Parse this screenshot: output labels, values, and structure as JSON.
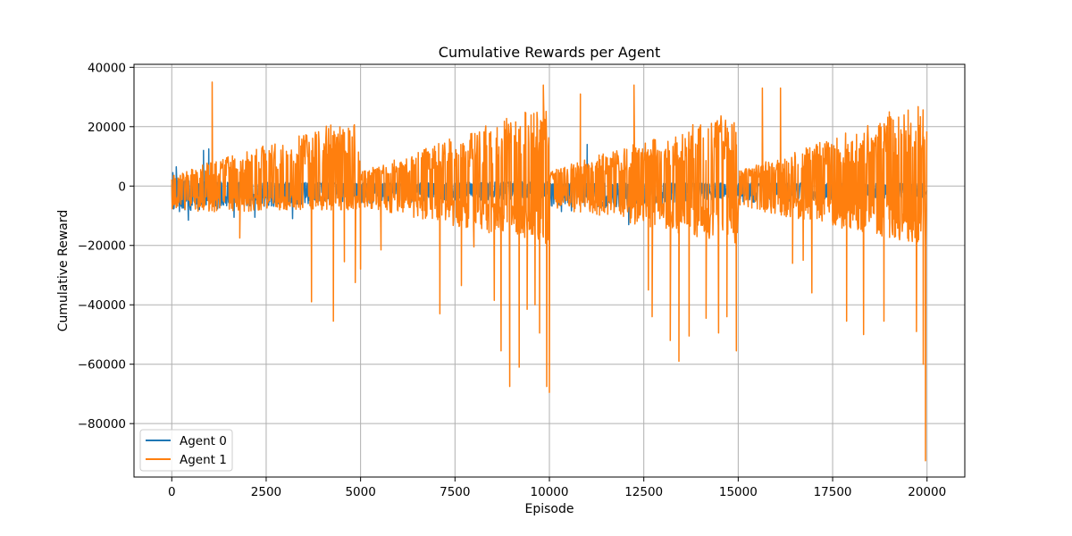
{
  "chart_data": {
    "type": "line",
    "title": "Cumulative Rewards per Agent",
    "xlabel": "Episode",
    "ylabel": "Cumulative Reward",
    "xlim": [
      -1000,
      21000
    ],
    "ylim": [
      -98000,
      41000
    ],
    "xticks": [
      0,
      2500,
      5000,
      7500,
      10000,
      12500,
      15000,
      17500,
      20000
    ],
    "xtick_labels": [
      "0",
      "2500",
      "5000",
      "7500",
      "10000",
      "12500",
      "15000",
      "17500",
      "20000"
    ],
    "yticks": [
      -80000,
      -60000,
      -40000,
      -20000,
      0,
      20000,
      40000
    ],
    "ytick_labels": [
      "−80000",
      "−60000",
      "−40000",
      "−20000",
      "0",
      "20000",
      "40000"
    ],
    "grid": true,
    "legend_position": "lower-left",
    "colors": {
      "agent0": "#1f77b4",
      "agent1": "#ff7f0e"
    },
    "episodes": 20000,
    "series": [
      {
        "name": "Agent 0",
        "color": "#1f77b4",
        "phases": [
          {
            "x": [
              0,
              5000
            ],
            "upper": [
              2000,
              1000
            ],
            "lower": [
              -9000,
              -5000
            ]
          },
          {
            "x": [
              5000,
              10000
            ],
            "upper": [
              1000,
              1500
            ],
            "lower": [
              -6000,
              -4000
            ]
          },
          {
            "x": [
              10000,
              15000
            ],
            "upper": [
              1000,
              1000
            ],
            "lower": [
              -9000,
              -4000
            ]
          },
          {
            "x": [
              15000,
              20000
            ],
            "upper": [
              1000,
              1000
            ],
            "lower": [
              -6000,
              -4000
            ]
          }
        ],
        "spikes": [
          {
            "x": 30,
            "y": 4500
          },
          {
            "x": 60,
            "y": -7500
          },
          {
            "x": 120,
            "y": 6500
          },
          {
            "x": 840,
            "y": 12000
          },
          {
            "x": 980,
            "y": 12500
          },
          {
            "x": 440,
            "y": -11500
          },
          {
            "x": 1650,
            "y": -10500
          },
          {
            "x": 2200,
            "y": -10500
          },
          {
            "x": 3200,
            "y": -11000
          },
          {
            "x": 9980,
            "y": 7000
          },
          {
            "x": 11000,
            "y": 14000
          },
          {
            "x": 12100,
            "y": -13000
          }
        ]
      },
      {
        "name": "Agent 1",
        "color": "#ff7f0e",
        "phases": [
          {
            "x": [
              0,
              5000
            ],
            "upper": [
              4000,
              24000
            ],
            "lower": [
              -9000,
              -8000
            ]
          },
          {
            "x": [
              5000,
              10000
            ],
            "upper": [
              5000,
              28000
            ],
            "lower": [
              -7000,
              -20000
            ]
          },
          {
            "x": [
              10000,
              15000
            ],
            "upper": [
              5000,
              26000
            ],
            "lower": [
              -7000,
              -20000
            ]
          },
          {
            "x": [
              15000,
              20000
            ],
            "upper": [
              5000,
              28000
            ],
            "lower": [
              -7000,
              -20000
            ]
          }
        ],
        "spikes": [
          {
            "x": 1070,
            "y": 35000
          },
          {
            "x": 1800,
            "y": -17500
          },
          {
            "x": 3700,
            "y": -39000
          },
          {
            "x": 4280,
            "y": -45500
          },
          {
            "x": 4570,
            "y": -25500
          },
          {
            "x": 4860,
            "y": -32500
          },
          {
            "x": 5000,
            "y": -28000
          },
          {
            "x": 5540,
            "y": -21500
          },
          {
            "x": 7100,
            "y": -43000
          },
          {
            "x": 7670,
            "y": -33500
          },
          {
            "x": 8000,
            "y": -20500
          },
          {
            "x": 8540,
            "y": -38500
          },
          {
            "x": 8720,
            "y": -55500
          },
          {
            "x": 8950,
            "y": -67500
          },
          {
            "x": 9200,
            "y": -61000
          },
          {
            "x": 9410,
            "y": -41500
          },
          {
            "x": 9620,
            "y": -40000
          },
          {
            "x": 9740,
            "y": -49500
          },
          {
            "x": 9930,
            "y": -67500
          },
          {
            "x": 10000,
            "y": -69500
          },
          {
            "x": 9840,
            "y": 34000
          },
          {
            "x": 10820,
            "y": 31000
          },
          {
            "x": 12240,
            "y": 34000
          },
          {
            "x": 12620,
            "y": -35000
          },
          {
            "x": 12720,
            "y": -44000
          },
          {
            "x": 13200,
            "y": -52000
          },
          {
            "x": 13430,
            "y": -59000
          },
          {
            "x": 13700,
            "y": -50500
          },
          {
            "x": 14150,
            "y": -44500
          },
          {
            "x": 14480,
            "y": -49500
          },
          {
            "x": 14700,
            "y": -44000
          },
          {
            "x": 14950,
            "y": -55500
          },
          {
            "x": 15640,
            "y": 33000
          },
          {
            "x": 16120,
            "y": 33000
          },
          {
            "x": 16440,
            "y": -26000
          },
          {
            "x": 16720,
            "y": -25000
          },
          {
            "x": 16950,
            "y": -36000
          },
          {
            "x": 17870,
            "y": -45500
          },
          {
            "x": 18320,
            "y": -50000
          },
          {
            "x": 18860,
            "y": -45500
          },
          {
            "x": 19000,
            "y": 25000
          },
          {
            "x": 19720,
            "y": -49000
          },
          {
            "x": 19960,
            "y": -92500
          },
          {
            "x": 19900,
            "y": -60000
          }
        ]
      }
    ]
  }
}
